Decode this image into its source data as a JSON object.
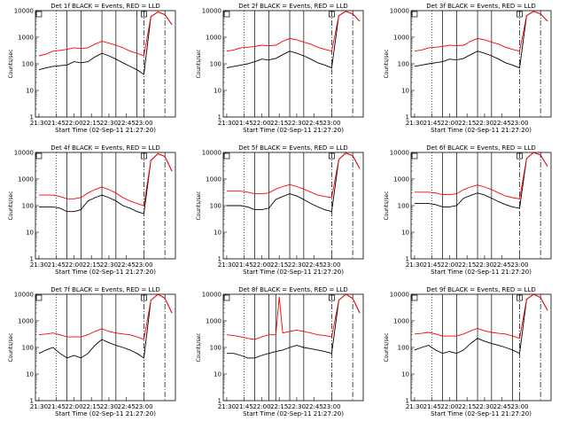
{
  "x_ticks": [
    "21:30",
    "21:45",
    "22:00",
    "22:15",
    "22:30",
    "22:45",
    "23:00"
  ],
  "y_ticks": [
    "1",
    "10",
    "100",
    "1000",
    "10000"
  ],
  "ylabel": "Counts/sec",
  "xlabel": "Start Time (02-Sep-11 21:27:20)",
  "colors": {
    "events": "#000000",
    "lld": "#ff0000"
  },
  "chart_data": [
    {
      "type": "line",
      "title": "Det 1f BLACK = Events, RED = LLD",
      "xlim": [
        -1,
        39
      ],
      "ylim": [
        1,
        10000
      ],
      "y_scale": "log",
      "vlines_solid": [
        8,
        12,
        18,
        22,
        28
      ],
      "vlines_dotted": [
        5
      ],
      "vlines_dashdot": [
        30,
        36
      ],
      "markers": [
        0,
        30
      ],
      "series": [
        {
          "name": "Events",
          "x": [
            0,
            2,
            4,
            6,
            8,
            10,
            12,
            14,
            16,
            18,
            20,
            22,
            24,
            26,
            28,
            30,
            32,
            34,
            36,
            38
          ],
          "values": [
            60,
            70,
            80,
            85,
            90,
            120,
            110,
            120,
            180,
            250,
            200,
            150,
            110,
            80,
            60,
            40,
            6000,
            9000,
            7000,
            3000
          ]
        },
        {
          "name": "LLD",
          "x": [
            0,
            2,
            4,
            6,
            8,
            10,
            12,
            14,
            16,
            18,
            20,
            22,
            24,
            26,
            28,
            30,
            32,
            34,
            36,
            38
          ],
          "values": [
            200,
            230,
            300,
            320,
            350,
            400,
            380,
            400,
            550,
            700,
            600,
            500,
            400,
            300,
            250,
            200,
            6000,
            9000,
            7000,
            3000
          ]
        }
      ]
    },
    {
      "type": "line",
      "title": "Det 2f BLACK = Events, RED = LLD",
      "xlim": [
        -1,
        39
      ],
      "ylim": [
        1,
        10000
      ],
      "y_scale": "log",
      "vlines_solid": [
        8,
        12,
        18,
        22
      ],
      "vlines_dotted": [
        5
      ],
      "vlines_dashdot": [
        30,
        36
      ],
      "markers": [
        0,
        30
      ],
      "series": [
        {
          "name": "Events",
          "x": [
            0,
            2,
            4,
            6,
            8,
            10,
            12,
            14,
            16,
            18,
            20,
            22,
            24,
            26,
            28,
            30,
            32,
            34,
            36,
            38
          ],
          "values": [
            70,
            80,
            90,
            100,
            120,
            150,
            140,
            160,
            220,
            300,
            250,
            200,
            150,
            110,
            90,
            70,
            6500,
            9500,
            7500,
            4000
          ]
        },
        {
          "name": "LLD",
          "x": [
            0,
            2,
            4,
            6,
            8,
            10,
            12,
            14,
            16,
            18,
            20,
            22,
            24,
            26,
            28,
            30,
            32,
            34,
            36,
            38
          ],
          "values": [
            300,
            330,
            400,
            420,
            450,
            500,
            480,
            500,
            700,
            900,
            800,
            650,
            550,
            420,
            350,
            300,
            6500,
            9500,
            7500,
            4000
          ]
        }
      ]
    },
    {
      "type": "line",
      "title": "Det 3f BLACK = Events, RED = LLD",
      "xlim": [
        -1,
        39
      ],
      "ylim": [
        1,
        10000
      ],
      "y_scale": "log",
      "vlines_solid": [
        8,
        12,
        18,
        22
      ],
      "vlines_dotted": [
        5
      ],
      "vlines_dashdot": [
        30,
        36
      ],
      "markers": [
        0,
        30
      ],
      "series": [
        {
          "name": "Events",
          "x": [
            0,
            2,
            4,
            6,
            8,
            10,
            12,
            14,
            16,
            18,
            20,
            22,
            24,
            26,
            28,
            30,
            32,
            34,
            36,
            38
          ],
          "values": [
            80,
            90,
            100,
            110,
            120,
            150,
            140,
            160,
            220,
            300,
            250,
            200,
            150,
            110,
            90,
            70,
            6500,
            9500,
            7500,
            4000
          ]
        },
        {
          "name": "LLD",
          "x": [
            0,
            2,
            4,
            6,
            8,
            10,
            12,
            14,
            16,
            18,
            20,
            22,
            24,
            26,
            28,
            30,
            32,
            34,
            36,
            38
          ],
          "values": [
            300,
            330,
            400,
            420,
            450,
            500,
            480,
            500,
            700,
            900,
            800,
            650,
            550,
            420,
            350,
            300,
            6500,
            9500,
            7500,
            4000
          ]
        }
      ]
    },
    {
      "type": "line",
      "title": "Det 4f BLACK = Events, RED = LLD",
      "xlim": [
        -1,
        39
      ],
      "ylim": [
        1,
        10000
      ],
      "y_scale": "log",
      "vlines_solid": [
        8,
        12,
        18,
        22
      ],
      "vlines_dotted": [
        5
      ],
      "vlines_dashdot": [
        30,
        36
      ],
      "markers": [
        0,
        30
      ],
      "series": [
        {
          "name": "Events",
          "x": [
            0,
            2,
            4,
            6,
            8,
            10,
            12,
            14,
            16,
            18,
            20,
            22,
            24,
            26,
            28,
            30,
            32,
            34,
            36,
            38
          ],
          "values": [
            90,
            90,
            90,
            80,
            60,
            60,
            70,
            150,
            200,
            250,
            200,
            150,
            100,
            80,
            60,
            50,
            5000,
            9000,
            7000,
            2000
          ]
        },
        {
          "name": "LLD",
          "x": [
            0,
            2,
            4,
            6,
            8,
            10,
            12,
            14,
            16,
            18,
            20,
            22,
            24,
            26,
            28,
            30,
            32,
            34,
            36,
            38
          ],
          "values": [
            250,
            250,
            250,
            220,
            180,
            180,
            200,
            300,
            400,
            500,
            400,
            300,
            200,
            150,
            120,
            100,
            5000,
            9000,
            7000,
            2000
          ]
        }
      ]
    },
    {
      "type": "line",
      "title": "Det 5f BLACK = Events, RED = LLD",
      "xlim": [
        -1,
        39
      ],
      "ylim": [
        1,
        10000
      ],
      "y_scale": "log",
      "vlines_solid": [
        8,
        12,
        18,
        22
      ],
      "vlines_dotted": [
        5
      ],
      "vlines_dashdot": [
        30,
        36
      ],
      "markers": [
        0,
        30
      ],
      "series": [
        {
          "name": "Events",
          "x": [
            0,
            2,
            4,
            6,
            8,
            10,
            12,
            14,
            16,
            18,
            20,
            22,
            24,
            26,
            28,
            30,
            32,
            34,
            36,
            38
          ],
          "values": [
            100,
            100,
            100,
            90,
            70,
            70,
            80,
            170,
            220,
            280,
            230,
            170,
            120,
            90,
            70,
            60,
            5500,
            9500,
            7500,
            2500
          ]
        },
        {
          "name": "LLD",
          "x": [
            0,
            2,
            4,
            6,
            8,
            10,
            12,
            14,
            16,
            18,
            20,
            22,
            24,
            26,
            28,
            30,
            32,
            34,
            36,
            38
          ],
          "values": [
            350,
            350,
            350,
            320,
            280,
            280,
            300,
            420,
            520,
            620,
            520,
            420,
            320,
            250,
            220,
            200,
            5500,
            9500,
            7500,
            2500
          ]
        }
      ]
    },
    {
      "type": "line",
      "title": "Det 6f BLACK = Events, RED = LLD",
      "xlim": [
        -1,
        39
      ],
      "ylim": [
        1,
        10000
      ],
      "y_scale": "log",
      "vlines_solid": [
        8,
        12,
        18,
        22
      ],
      "vlines_dotted": [
        5
      ],
      "vlines_dashdot": [
        30,
        36
      ],
      "markers": [
        0,
        30
      ],
      "series": [
        {
          "name": "Events",
          "x": [
            0,
            2,
            4,
            6,
            8,
            10,
            12,
            14,
            16,
            18,
            20,
            22,
            24,
            26,
            28,
            30,
            32,
            34,
            36,
            38
          ],
          "values": [
            120,
            120,
            120,
            110,
            90,
            90,
            100,
            190,
            240,
            300,
            250,
            190,
            140,
            110,
            90,
            80,
            6000,
            10000,
            8000,
            3000
          ]
        },
        {
          "name": "LLD",
          "x": [
            0,
            2,
            4,
            6,
            8,
            10,
            12,
            14,
            16,
            18,
            20,
            22,
            24,
            26,
            28,
            30,
            32,
            34,
            36,
            38
          ],
          "values": [
            320,
            320,
            320,
            300,
            260,
            260,
            280,
            400,
            500,
            600,
            500,
            400,
            300,
            230,
            200,
            180,
            6000,
            10000,
            8000,
            3000
          ]
        }
      ]
    },
    {
      "type": "line",
      "title": "Det 7f BLACK = Events, RED = LLD",
      "xlim": [
        -1,
        39
      ],
      "ylim": [
        1,
        10000
      ],
      "y_scale": "log",
      "vlines_solid": [
        8,
        12,
        18,
        22
      ],
      "vlines_dotted": [
        5
      ],
      "vlines_dashdot": [
        30,
        36
      ],
      "markers": [
        0,
        30
      ],
      "series": [
        {
          "name": "Events",
          "x": [
            0,
            2,
            4,
            6,
            8,
            10,
            12,
            14,
            16,
            18,
            20,
            22,
            24,
            26,
            28,
            30,
            32,
            34,
            36,
            38
          ],
          "values": [
            60,
            80,
            100,
            60,
            40,
            50,
            40,
            60,
            120,
            200,
            150,
            120,
            100,
            80,
            60,
            40,
            6000,
            10000,
            7000,
            2000
          ]
        },
        {
          "name": "LLD",
          "x": [
            0,
            2,
            4,
            6,
            8,
            10,
            12,
            14,
            16,
            18,
            20,
            22,
            24,
            26,
            28,
            30,
            32,
            34,
            36,
            38
          ],
          "values": [
            300,
            320,
            350,
            300,
            250,
            250,
            250,
            300,
            400,
            500,
            400,
            350,
            320,
            300,
            250,
            200,
            6000,
            10000,
            7000,
            2000
          ]
        }
      ]
    },
    {
      "type": "line",
      "title": "Det 8f BLACK = Events, RED = LLD",
      "xlim": [
        -1,
        39
      ],
      "ylim": [
        1,
        10000
      ],
      "y_scale": "log",
      "vlines_solid": [
        8,
        12,
        14,
        18,
        22
      ],
      "vlines_dotted": [
        5
      ],
      "vlines_dashdot": [
        30,
        36
      ],
      "markers": [
        0,
        30
      ],
      "series": [
        {
          "name": "Events",
          "x": [
            0,
            2,
            4,
            6,
            8,
            10,
            12,
            14,
            16,
            18,
            20,
            22,
            24,
            26,
            28,
            30,
            32,
            34,
            36,
            38
          ],
          "values": [
            60,
            60,
            50,
            40,
            40,
            50,
            60,
            70,
            80,
            100,
            120,
            100,
            90,
            80,
            70,
            60,
            6000,
            10000,
            7000,
            2000
          ]
        },
        {
          "name": "LLD",
          "x": [
            0,
            2,
            4,
            6,
            8,
            10,
            12,
            14,
            15,
            16,
            18,
            20,
            22,
            24,
            26,
            28,
            30,
            32,
            34,
            36,
            38
          ],
          "values": [
            300,
            280,
            250,
            220,
            200,
            250,
            300,
            300,
            8000,
            350,
            400,
            450,
            400,
            350,
            300,
            280,
            250,
            6000,
            10000,
            7000,
            2000
          ]
        }
      ]
    },
    {
      "type": "line",
      "title": "Det 9f BLACK = Events, RED = LLD",
      "xlim": [
        -1,
        39
      ],
      "ylim": [
        1,
        10000
      ],
      "y_scale": "log",
      "vlines_solid": [
        8,
        12,
        18,
        22,
        28
      ],
      "vlines_dotted": [
        5
      ],
      "vlines_dashdot": [
        30,
        36
      ],
      "markers": [
        0,
        30
      ],
      "series": [
        {
          "name": "Events",
          "x": [
            0,
            2,
            4,
            6,
            8,
            10,
            12,
            14,
            16,
            18,
            20,
            22,
            24,
            26,
            28,
            30,
            32,
            34,
            36,
            38
          ],
          "values": [
            80,
            100,
            120,
            80,
            60,
            70,
            60,
            80,
            140,
            220,
            170,
            140,
            120,
            100,
            80,
            60,
            6500,
            10000,
            7500,
            2500
          ]
        },
        {
          "name": "LLD",
          "x": [
            0,
            2,
            4,
            6,
            8,
            10,
            12,
            14,
            16,
            18,
            20,
            22,
            24,
            26,
            28,
            30,
            32,
            34,
            36,
            38
          ],
          "values": [
            320,
            340,
            370,
            320,
            270,
            270,
            270,
            320,
            420,
            520,
            420,
            370,
            340,
            320,
            270,
            220,
            6500,
            10000,
            7500,
            2500
          ]
        }
      ]
    }
  ]
}
